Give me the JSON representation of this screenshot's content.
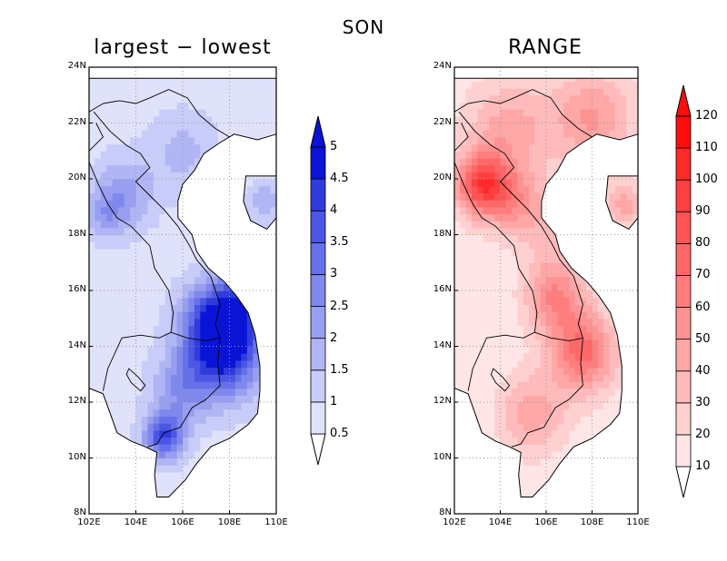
{
  "figure": {
    "title": "SON"
  },
  "panels": [
    {
      "id": "left",
      "title": "largest − lowest",
      "palette": [
        "#f4f4ff",
        "#e0e2fb",
        "#c8ccf8",
        "#b0b6f4",
        "#989ff0",
        "#7f88ec",
        "#6670e8",
        "#4b56e3",
        "#2f3cdd",
        "#0a14d6"
      ],
      "colorbar": {
        "labels": [
          "0.5",
          "1",
          "1.5",
          "2",
          "2.5",
          "3",
          "3.5",
          "4",
          "4.5",
          "5"
        ]
      }
    },
    {
      "id": "right",
      "title": "RANGE",
      "palette": [
        "#fffafa",
        "#ffe5e5",
        "#ffd0d0",
        "#ffbbbb",
        "#ffa6a6",
        "#ff9292",
        "#ff7d7d",
        "#ff6868",
        "#ff5454",
        "#ff3f3f",
        "#ff2a2a",
        "#ff0d0d"
      ],
      "colorbar": {
        "labels": [
          "10",
          "20",
          "30",
          "40",
          "50",
          "60",
          "70",
          "80",
          "90",
          "100",
          "110",
          "120"
        ]
      }
    }
  ],
  "axes": {
    "lon_ticks": [
      "102E",
      "104E",
      "106E",
      "108E",
      "110E"
    ],
    "lat_ticks": [
      "8N",
      "10N",
      "12N",
      "14N",
      "16N",
      "18N",
      "20N",
      "22N",
      "24N"
    ]
  },
  "map_meta": {
    "region": "Indochina / Vietnam",
    "lon_range": [
      102,
      110
    ],
    "lat_range": [
      8,
      24
    ],
    "grid": true,
    "projection": "lat-lon"
  }
}
